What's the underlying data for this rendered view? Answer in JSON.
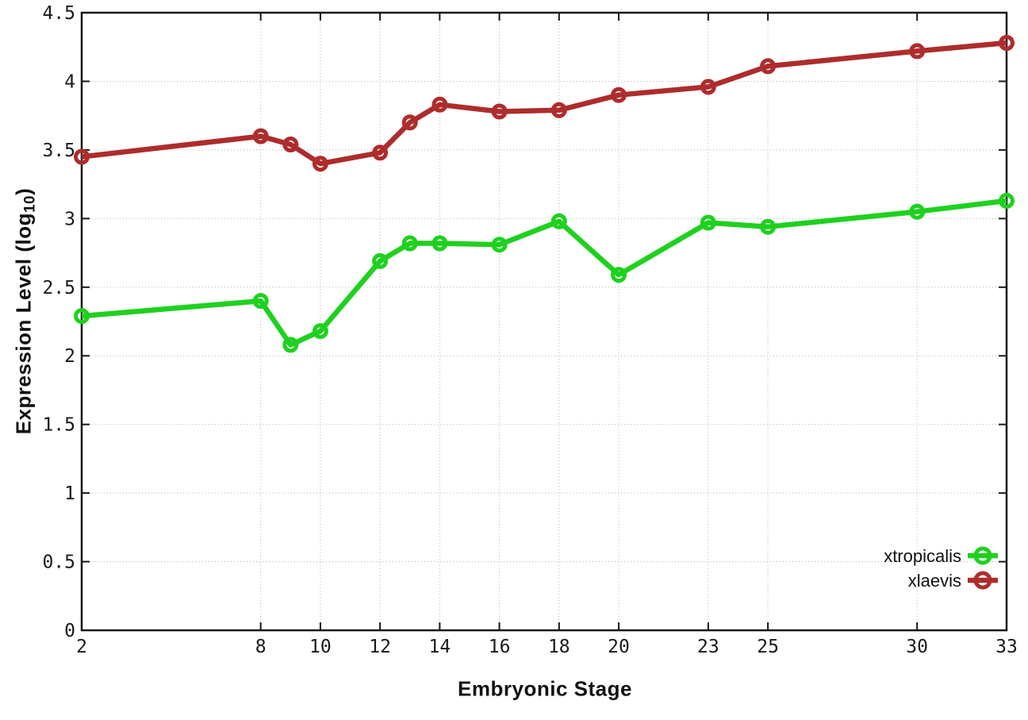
{
  "chart_data": {
    "type": "line",
    "title": "",
    "xlabel": "Embryonic Stage",
    "ylabel": {
      "pre": "Expression Level (log",
      "sub": "10",
      "post": ")"
    },
    "xlim": [
      2,
      33
    ],
    "ylim": [
      0,
      4.5
    ],
    "xticks": [
      2,
      8,
      10,
      12,
      14,
      16,
      18,
      20,
      23,
      25,
      30,
      33
    ],
    "yticks": [
      0,
      0.5,
      1,
      1.5,
      2,
      2.5,
      3,
      3.5,
      4,
      4.5
    ],
    "grid": true,
    "grid_style": "dotted",
    "legend_position": "bottom-right-inside",
    "x": [
      2,
      8,
      9,
      10,
      12,
      13,
      14,
      16,
      18,
      20,
      23,
      25,
      30,
      33
    ],
    "series": [
      {
        "name": "xtropicalis",
        "color": "#1FD11F",
        "marker": "open-circle",
        "values": [
          2.29,
          2.4,
          2.08,
          2.18,
          2.69,
          2.82,
          2.82,
          2.81,
          2.98,
          2.59,
          2.97,
          2.94,
          3.05,
          3.13
        ]
      },
      {
        "name": "xlaevis",
        "color": "#AE2C2C",
        "marker": "open-circle",
        "values": [
          3.45,
          3.6,
          3.54,
          3.4,
          3.48,
          3.7,
          3.83,
          3.78,
          3.79,
          3.9,
          3.96,
          4.11,
          4.22,
          4.28
        ]
      }
    ]
  },
  "colors": {
    "background": "#ffffff",
    "axis": "#181818",
    "grid": "#b5b5b5",
    "tick_text": "#1a1a1a"
  }
}
